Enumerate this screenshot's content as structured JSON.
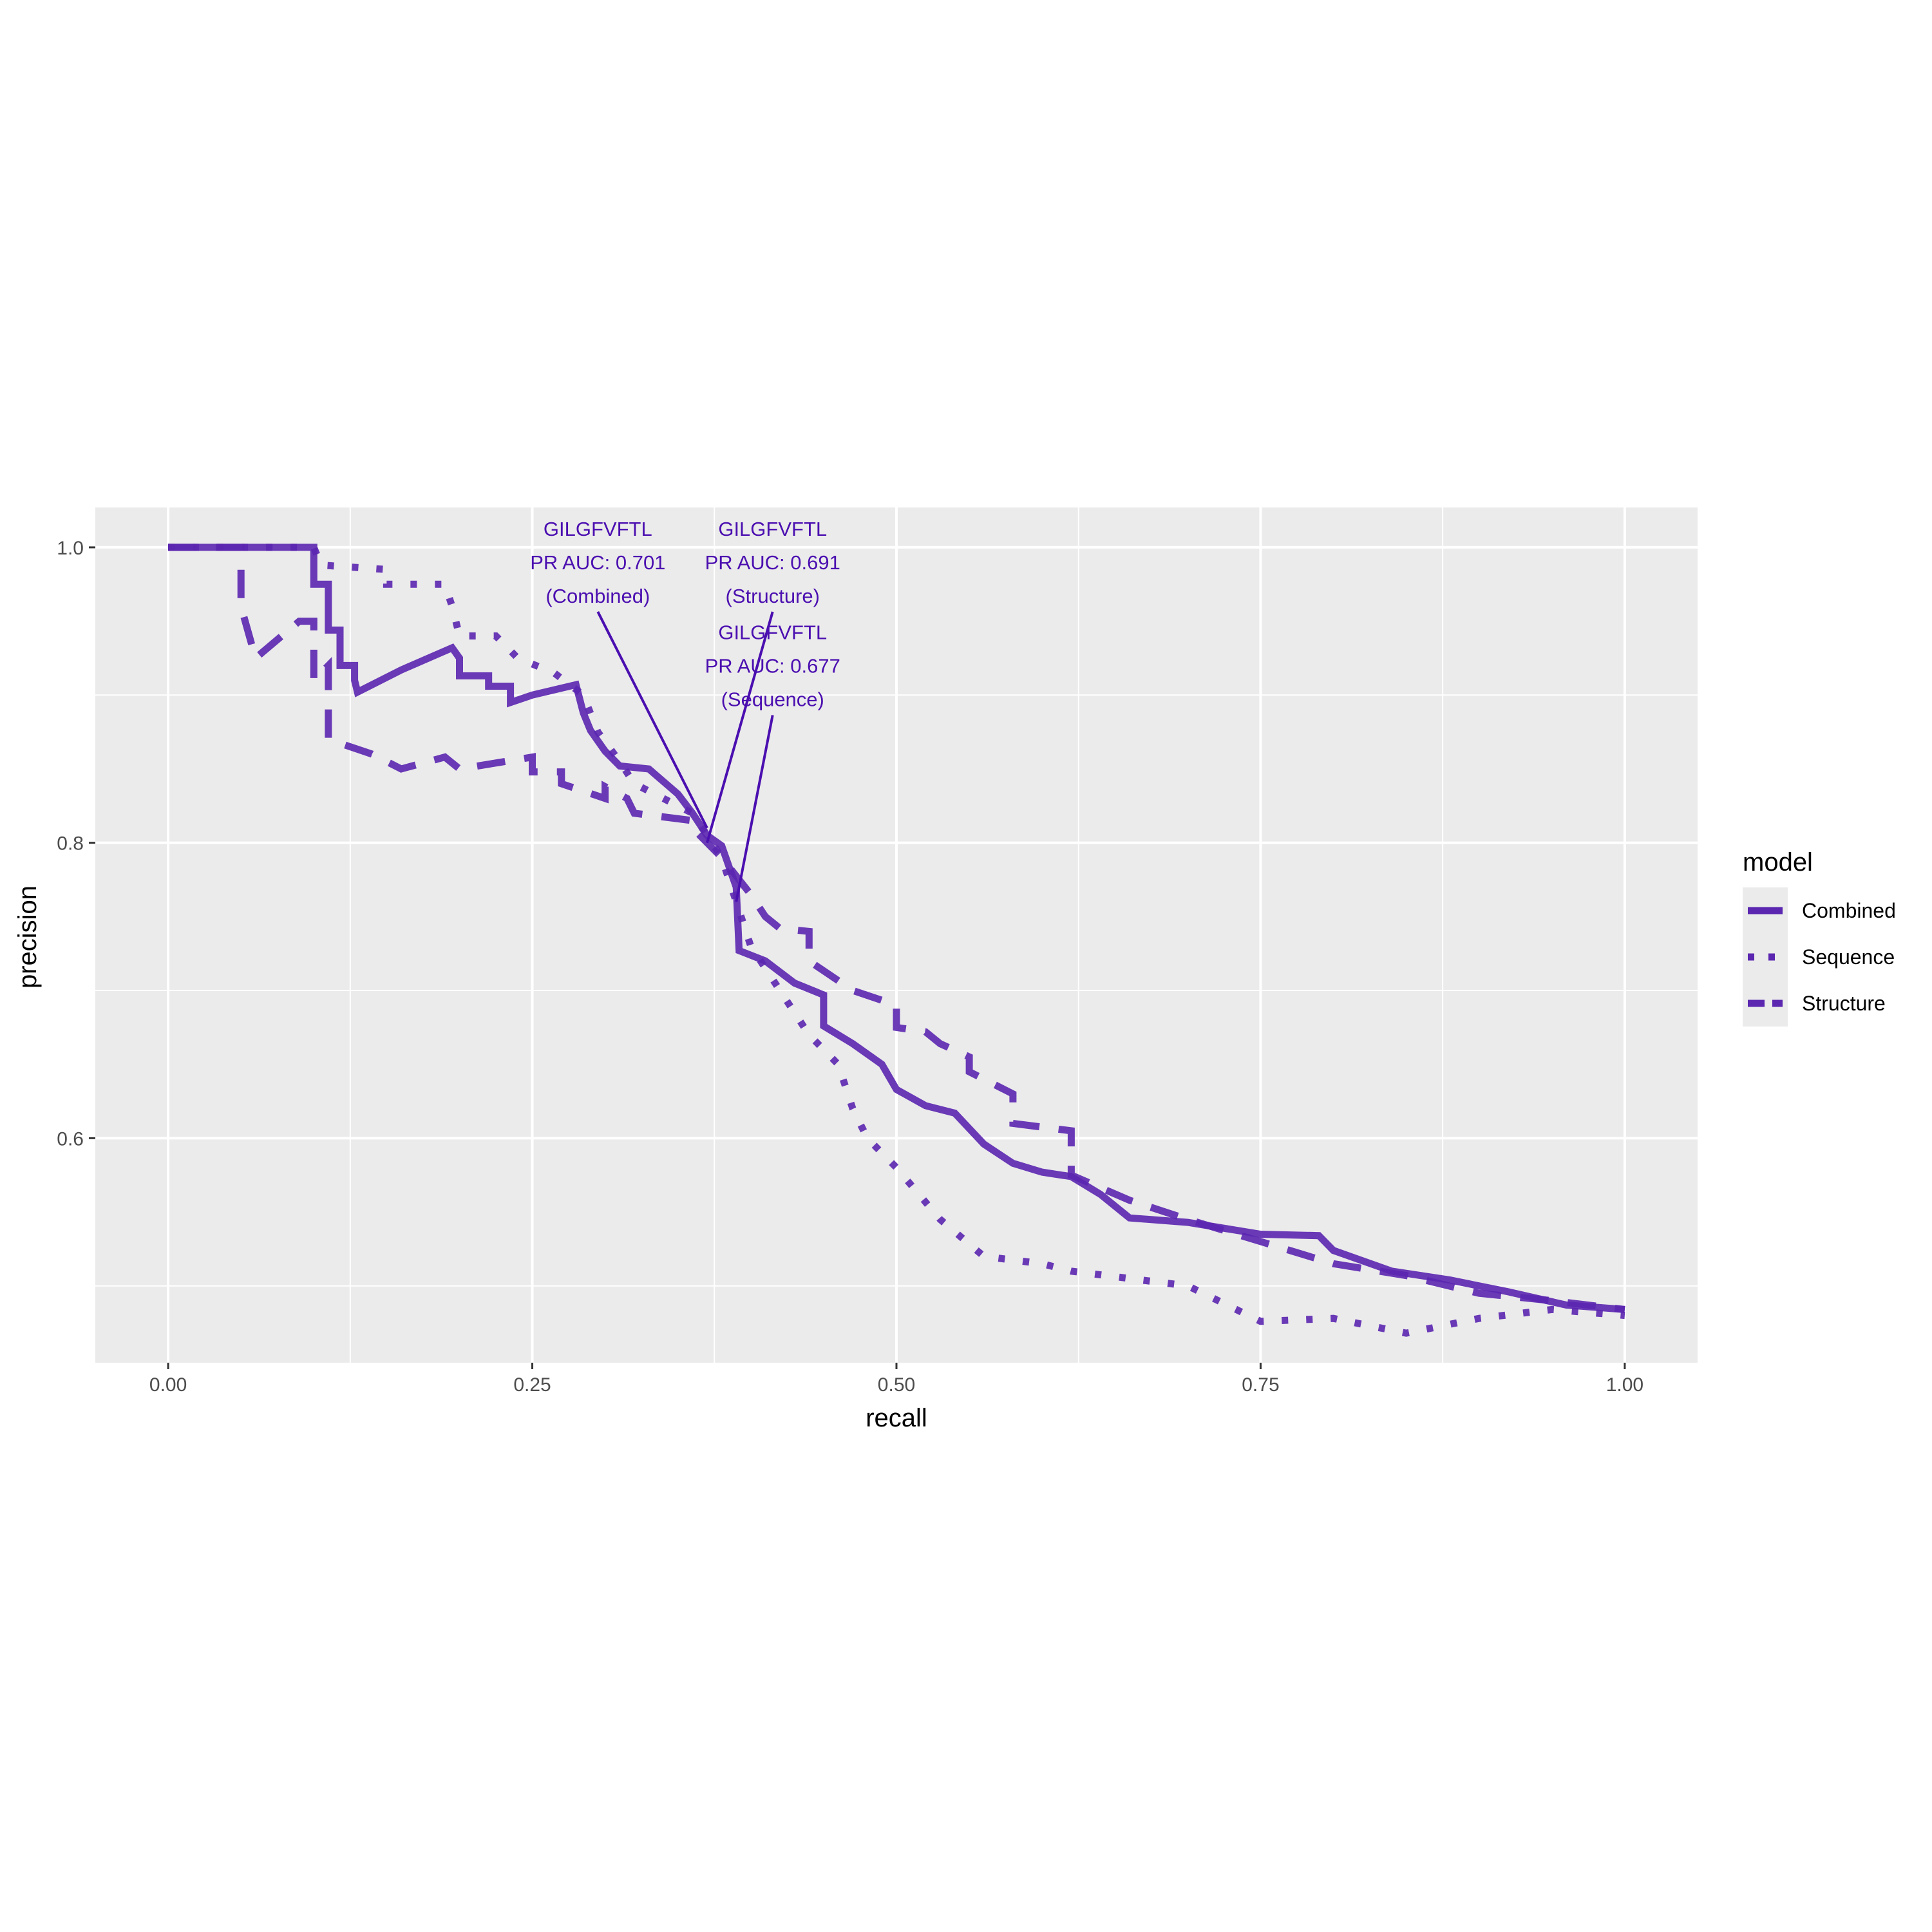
{
  "chart_data": {
    "type": "line",
    "title": "",
    "xlabel": "recall",
    "ylabel": "precision",
    "xlim": [
      -0.05,
      1.05
    ],
    "ylim": [
      0.448,
      1.027
    ],
    "x_ticks": [
      0.0,
      0.25,
      0.5,
      0.75,
      1.0
    ],
    "x_tick_labels": [
      "0.00",
      "0.25",
      "0.50",
      "0.75",
      "1.00"
    ],
    "y_ticks": [
      0.6,
      0.8,
      1.0
    ],
    "y_tick_labels": [
      "0.6",
      "0.8",
      "1.0"
    ],
    "grid": true,
    "legend": {
      "title": "model",
      "placement": "right",
      "entries": [
        "Combined",
        "Sequence",
        "Structure"
      ]
    },
    "colors": {
      "line": "#5b26b0",
      "annotation": "#4b0fb0",
      "panel": "#ebebeb",
      "grid": "#ffffff"
    },
    "series": [
      {
        "name": "Combined",
        "linetype": "solid",
        "points": [
          [
            0.0,
            1.0
          ],
          [
            0.1,
            1.0
          ],
          [
            0.1,
            0.975
          ],
          [
            0.11,
            0.975
          ],
          [
            0.11,
            0.944
          ],
          [
            0.118,
            0.944
          ],
          [
            0.118,
            0.92
          ],
          [
            0.128,
            0.92
          ],
          [
            0.128,
            0.91
          ],
          [
            0.13,
            0.902
          ],
          [
            0.16,
            0.917
          ],
          [
            0.195,
            0.932
          ],
          [
            0.2,
            0.925
          ],
          [
            0.2,
            0.913
          ],
          [
            0.22,
            0.913
          ],
          [
            0.22,
            0.906
          ],
          [
            0.235,
            0.906
          ],
          [
            0.235,
            0.895
          ],
          [
            0.25,
            0.9
          ],
          [
            0.28,
            0.907
          ],
          [
            0.285,
            0.888
          ],
          [
            0.29,
            0.876
          ],
          [
            0.3,
            0.862
          ],
          [
            0.31,
            0.852
          ],
          [
            0.33,
            0.85
          ],
          [
            0.35,
            0.833
          ],
          [
            0.36,
            0.82
          ],
          [
            0.37,
            0.805
          ],
          [
            0.38,
            0.798
          ],
          [
            0.39,
            0.77
          ],
          [
            0.392,
            0.727
          ],
          [
            0.41,
            0.72
          ],
          [
            0.43,
            0.705
          ],
          [
            0.45,
            0.697
          ],
          [
            0.45,
            0.676
          ],
          [
            0.47,
            0.664
          ],
          [
            0.49,
            0.65
          ],
          [
            0.5,
            0.633
          ],
          [
            0.52,
            0.622
          ],
          [
            0.54,
            0.617
          ],
          [
            0.56,
            0.596
          ],
          [
            0.58,
            0.583
          ],
          [
            0.6,
            0.577
          ],
          [
            0.62,
            0.574
          ],
          [
            0.64,
            0.562
          ],
          [
            0.66,
            0.546
          ],
          [
            0.7,
            0.543
          ],
          [
            0.75,
            0.535
          ],
          [
            0.79,
            0.534
          ],
          [
            0.8,
            0.524
          ],
          [
            0.84,
            0.51
          ],
          [
            0.88,
            0.504
          ],
          [
            0.92,
            0.496
          ],
          [
            0.96,
            0.487
          ],
          [
            1.0,
            0.484
          ]
        ]
      },
      {
        "name": "Sequence",
        "linetype": "dotted",
        "points": [
          [
            0.0,
            1.0
          ],
          [
            0.1,
            1.0
          ],
          [
            0.105,
            0.988
          ],
          [
            0.15,
            0.985
          ],
          [
            0.15,
            0.975
          ],
          [
            0.19,
            0.975
          ],
          [
            0.195,
            0.96
          ],
          [
            0.2,
            0.94
          ],
          [
            0.225,
            0.94
          ],
          [
            0.24,
            0.925
          ],
          [
            0.265,
            0.915
          ],
          [
            0.285,
            0.9
          ],
          [
            0.295,
            0.875
          ],
          [
            0.31,
            0.855
          ],
          [
            0.32,
            0.84
          ],
          [
            0.34,
            0.83
          ],
          [
            0.36,
            0.82
          ],
          [
            0.37,
            0.805
          ],
          [
            0.38,
            0.79
          ],
          [
            0.39,
            0.76
          ],
          [
            0.4,
            0.73
          ],
          [
            0.42,
            0.7
          ],
          [
            0.44,
            0.67
          ],
          [
            0.46,
            0.65
          ],
          [
            0.47,
            0.62
          ],
          [
            0.48,
            0.6
          ],
          [
            0.5,
            0.58
          ],
          [
            0.53,
            0.545
          ],
          [
            0.56,
            0.52
          ],
          [
            0.6,
            0.515
          ],
          [
            0.62,
            0.51
          ],
          [
            0.7,
            0.5
          ],
          [
            0.75,
            0.476
          ],
          [
            0.8,
            0.478
          ],
          [
            0.85,
            0.468
          ],
          [
            0.9,
            0.478
          ],
          [
            0.95,
            0.484
          ],
          [
            1.0,
            0.48
          ]
        ]
      },
      {
        "name": "Structure",
        "linetype": "dashed",
        "points": [
          [
            0.0,
            1.0
          ],
          [
            0.05,
            1.0
          ],
          [
            0.05,
            0.96
          ],
          [
            0.06,
            0.925
          ],
          [
            0.09,
            0.95
          ],
          [
            0.1,
            0.95
          ],
          [
            0.1,
            0.91
          ],
          [
            0.11,
            0.92
          ],
          [
            0.11,
            0.87
          ],
          [
            0.14,
            0.86
          ],
          [
            0.16,
            0.85
          ],
          [
            0.19,
            0.858
          ],
          [
            0.2,
            0.85
          ],
          [
            0.25,
            0.858
          ],
          [
            0.25,
            0.848
          ],
          [
            0.27,
            0.848
          ],
          [
            0.27,
            0.84
          ],
          [
            0.3,
            0.83
          ],
          [
            0.3,
            0.838
          ],
          [
            0.315,
            0.83
          ],
          [
            0.32,
            0.82
          ],
          [
            0.36,
            0.815
          ],
          [
            0.36,
            0.81
          ],
          [
            0.38,
            0.79
          ],
          [
            0.4,
            0.765
          ],
          [
            0.41,
            0.75
          ],
          [
            0.42,
            0.742
          ],
          [
            0.44,
            0.74
          ],
          [
            0.44,
            0.72
          ],
          [
            0.47,
            0.7
          ],
          [
            0.5,
            0.69
          ],
          [
            0.5,
            0.675
          ],
          [
            0.52,
            0.672
          ],
          [
            0.53,
            0.664
          ],
          [
            0.55,
            0.655
          ],
          [
            0.55,
            0.645
          ],
          [
            0.58,
            0.63
          ],
          [
            0.58,
            0.61
          ],
          [
            0.62,
            0.605
          ],
          [
            0.62,
            0.575
          ],
          [
            0.66,
            0.558
          ],
          [
            0.7,
            0.545
          ],
          [
            0.75,
            0.53
          ],
          [
            0.8,
            0.515
          ],
          [
            0.85,
            0.507
          ],
          [
            0.9,
            0.495
          ],
          [
            0.95,
            0.49
          ],
          [
            1.0,
            0.484
          ]
        ]
      }
    ],
    "annotations": [
      {
        "lines": [
          "GILGFVFTL",
          "PR AUC: 0.701",
          "(Combined)"
        ],
        "label_x": 0.295,
        "label_y": 1.0,
        "point": [
          0.37,
          0.81
        ]
      },
      {
        "lines": [
          "GILGFVFTL",
          "PR AUC: 0.691",
          "(Structure)"
        ],
        "label_x": 0.415,
        "label_y": 1.0,
        "point": [
          0.37,
          0.8
        ]
      },
      {
        "lines": [
          "GILGFVFTL",
          "PR AUC: 0.677",
          "(Sequence)"
        ],
        "label_x": 0.415,
        "label_y": 0.93,
        "point": [
          0.39,
          0.76
        ]
      }
    ]
  }
}
